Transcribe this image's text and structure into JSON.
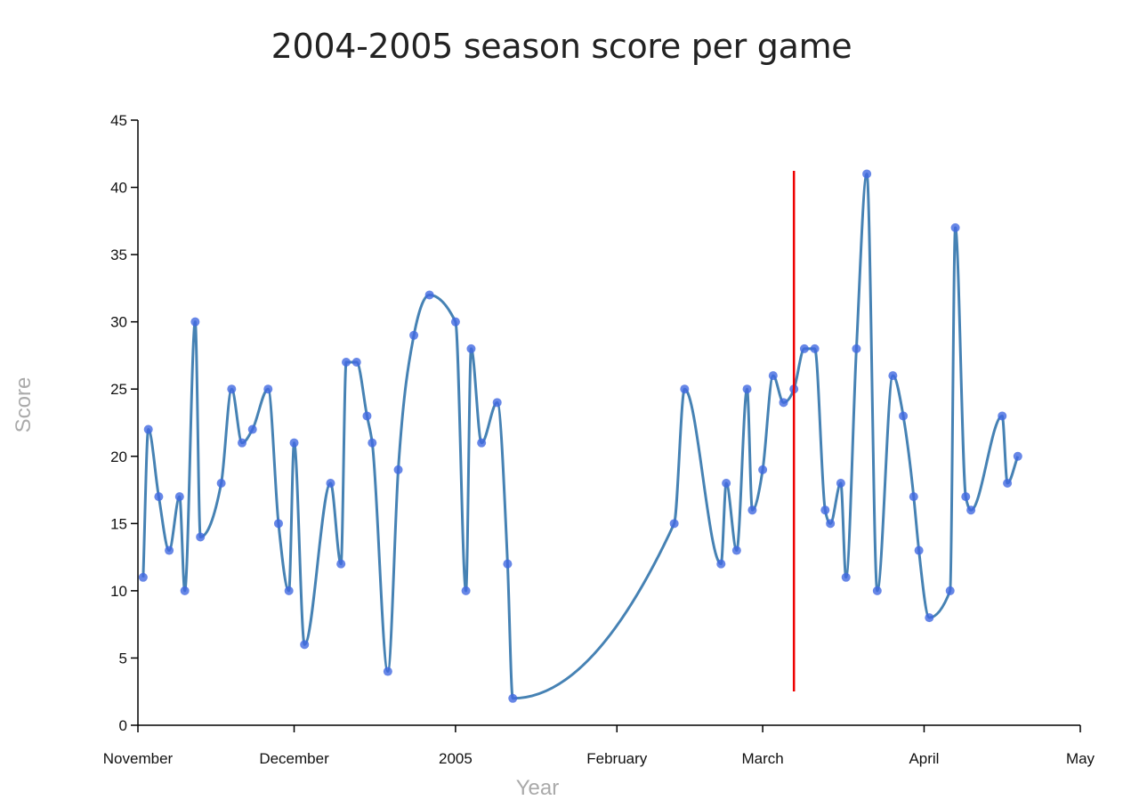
{
  "chart_data": {
    "type": "line",
    "title": "2004-2005 season score per game",
    "xlabel": "Year",
    "ylabel": "Score",
    "xlim": [
      "2004-11-01",
      "2005-05-01"
    ],
    "ylim": [
      0,
      45
    ],
    "y_ticks": [
      0,
      5,
      10,
      15,
      20,
      25,
      30,
      35,
      40,
      45
    ],
    "x_ticks": [
      {
        "date": "2004-11-01",
        "label": "November"
      },
      {
        "date": "2004-12-01",
        "label": "December"
      },
      {
        "date": "2005-01-01",
        "label": "2005"
      },
      {
        "date": "2005-02-01",
        "label": "February"
      },
      {
        "date": "2005-03-01",
        "label": "March"
      },
      {
        "date": "2005-04-01",
        "label": "April"
      },
      {
        "date": "2005-05-01",
        "label": "May"
      }
    ],
    "grid": false,
    "legend": "none",
    "colors": {
      "line": "#4682b4",
      "point": "#4169e1",
      "marker": "#ee0000",
      "axis": "#000000",
      "label": "#aaaaaa",
      "title": "#222222"
    },
    "vertical_marker": {
      "x": "2005-03-07"
    },
    "series": [
      {
        "x": [
          "2004-11-02",
          "2004-11-03",
          "2004-11-05",
          "2004-11-07",
          "2004-11-09",
          "2004-11-10",
          "2004-11-12",
          "2004-11-13",
          "2004-11-17",
          "2004-11-19",
          "2004-11-21",
          "2004-11-23",
          "2004-11-26",
          "2004-11-28",
          "2004-11-30",
          "2004-12-01",
          "2004-12-03",
          "2004-12-08",
          "2004-12-10",
          "2004-12-11",
          "2004-12-13",
          "2004-12-15",
          "2004-12-16",
          "2004-12-19",
          "2004-12-21",
          "2004-12-24",
          "2004-12-27",
          "2005-01-01",
          "2005-01-03",
          "2005-01-04",
          "2005-01-06",
          "2005-01-09",
          "2005-01-11",
          "2005-01-12",
          "2005-02-12",
          "2005-02-14",
          "2005-02-21",
          "2005-02-22",
          "2005-02-24",
          "2005-02-26",
          "2005-02-27",
          "2005-03-01",
          "2005-03-03",
          "2005-03-05",
          "2005-03-07",
          "2005-03-09",
          "2005-03-11",
          "2005-03-13",
          "2005-03-14",
          "2005-03-16",
          "2005-03-17",
          "2005-03-19",
          "2005-03-21",
          "2005-03-23",
          "2005-03-26",
          "2005-03-28",
          "2005-03-30",
          "2005-03-31",
          "2005-04-02",
          "2005-04-06",
          "2005-04-07",
          "2005-04-09",
          "2005-04-10",
          "2005-04-16",
          "2005-04-17",
          "2005-04-19"
        ],
        "values": [
          11,
          22,
          17,
          13,
          17,
          10,
          30,
          14,
          18,
          25,
          21,
          22,
          25,
          15,
          10,
          21,
          6,
          18,
          12,
          27,
          27,
          23,
          21,
          4,
          19,
          29,
          32,
          30,
          10,
          28,
          21,
          24,
          12,
          2,
          15,
          25,
          12,
          18,
          13,
          25,
          16,
          19,
          26,
          24,
          25,
          28,
          28,
          16,
          15,
          18,
          11,
          28,
          41,
          10,
          26,
          23,
          17,
          13,
          8,
          10,
          37,
          17,
          16,
          23,
          18,
          20
        ]
      }
    ]
  }
}
